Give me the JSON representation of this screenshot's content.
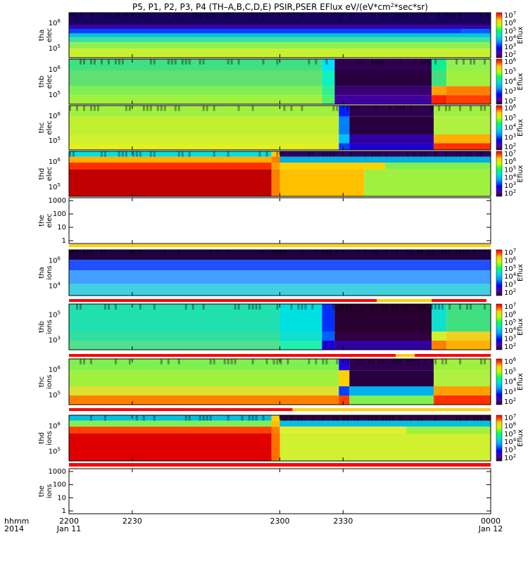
{
  "chart_data": {
    "type": "heatmap",
    "title_prefix": "P5, P1, P2, P3, P4 (TH–A,B,C,D,E) PSIR,PSER EFlux eV/(eV*cm",
    "title_exp": "2",
    "title_suffix": "*sec*sr)",
    "time_axis": {
      "row1_label": "hhmm",
      "row2_label": "2014",
      "ticks": [
        {
          "t": 2200,
          "label": "2200",
          "date": "Jan 11"
        },
        {
          "t": 2230,
          "label": "2230",
          "date": ""
        },
        {
          "t": 2300,
          "label": "2300",
          "date": ""
        },
        {
          "t": 2330,
          "label": "2330",
          "date": ""
        },
        {
          "t": 2400,
          "label": "0000",
          "date": "Jan 12"
        }
      ]
    },
    "colorbar_label": "Eflux",
    "panels": [
      {
        "probe": "tha",
        "species": "elec",
        "kind": "spec",
        "ylog_labels": [
          "10",
          "10"
        ],
        "ylog_exps": [
          "6",
          "5"
        ],
        "cb_labels": [
          [
            "10",
            "7"
          ],
          [
            "10",
            "6"
          ],
          [
            "10",
            "5"
          ],
          [
            "10",
            "4"
          ],
          [
            "10",
            "3"
          ],
          [
            "10",
            "2"
          ]
        ],
        "bands": [
          {
            "segments": [
              [
                "#000030",
                "#3a0a7a",
                0,
                1
              ]
            ],
            "stripe": true
          },
          {
            "segments": [
              [
                "#5000b0",
                "#5000b0",
                0,
                1
              ]
            ]
          },
          {
            "segments": [
              [
                "#0040ff",
                "#0090ff",
                0,
                0.9
              ],
              [
                "#0030ff",
                "#0020ff",
                0.9,
                1
              ]
            ]
          },
          {
            "segments": [
              [
                "#00d0d0",
                "#00c8c0",
                0,
                1
              ]
            ]
          },
          {
            "segments": [
              [
                "#50e090",
                "#60e080",
                0,
                1
              ]
            ]
          },
          {
            "segments": [
              [
                "#a0f040",
                "#a0f040",
                0,
                1
              ]
            ]
          },
          {
            "segments": [
              [
                "#c8f030",
                "#d0f030",
                0,
                1
              ]
            ]
          }
        ]
      },
      {
        "probe": "thb",
        "species": "elec",
        "kind": "spec",
        "ylog_labels": [
          "10",
          "10"
        ],
        "ylog_exps": [
          "6",
          "5"
        ],
        "cb_labels": [
          [
            "10",
            "6"
          ],
          [
            "10",
            "5"
          ],
          [
            "10",
            "4"
          ],
          [
            "10",
            "3"
          ],
          [
            "10",
            "2"
          ]
        ],
        "bands": []
      },
      {
        "probe": "thc",
        "species": "elec",
        "kind": "spec",
        "ylog_labels": [
          "10",
          "10"
        ],
        "ylog_exps": [
          "6",
          "5"
        ],
        "cb_labels": [
          [
            "10",
            "6"
          ],
          [
            "10",
            "5"
          ],
          [
            "10",
            "4"
          ],
          [
            "10",
            "3"
          ],
          [
            "10",
            "2"
          ]
        ],
        "bands": []
      },
      {
        "probe": "thd",
        "species": "elec",
        "kind": "spec",
        "ylog_labels": [
          "10",
          "10"
        ],
        "ylog_exps": [
          "6",
          "5"
        ],
        "cb_labels": [
          [
            "10",
            "7"
          ],
          [
            "10",
            "6"
          ],
          [
            "10",
            "5"
          ],
          [
            "10",
            "4"
          ],
          [
            "10",
            "3"
          ],
          [
            "10",
            "2"
          ]
        ],
        "bands": []
      },
      {
        "probe": "the",
        "species": "elec",
        "kind": "empty",
        "yticks": [
          "1000",
          "100",
          "10",
          "1"
        ]
      },
      {
        "probe": "tha",
        "species": "ions",
        "kind": "spec",
        "ylog_labels": [
          "10",
          "10"
        ],
        "ylog_exps": [
          "6",
          "4"
        ],
        "cb_labels": [
          [
            "10",
            "7"
          ],
          [
            "10",
            "6"
          ],
          [
            "10",
            "5"
          ],
          [
            "10",
            "4"
          ],
          [
            "10",
            "3"
          ],
          [
            "10",
            "2"
          ]
        ],
        "bands": []
      },
      {
        "probe": "thb",
        "species": "ions",
        "kind": "spec",
        "ylog_labels": [
          "10",
          "10"
        ],
        "ylog_exps": [
          "5",
          "3"
        ],
        "cb_labels": [
          [
            "10",
            "7"
          ],
          [
            "10",
            "6"
          ],
          [
            "10",
            "5"
          ],
          [
            "10",
            "4"
          ],
          [
            "10",
            "3"
          ],
          [
            "10",
            "2"
          ]
        ],
        "bands": []
      },
      {
        "probe": "thc",
        "species": "ions",
        "kind": "spec",
        "ylog_labels": [
          "10",
          "10"
        ],
        "ylog_exps": [
          "6",
          "5"
        ],
        "cb_labels": [
          [
            "10",
            "6"
          ],
          [
            "10",
            "5"
          ],
          [
            "10",
            "4"
          ],
          [
            "10",
            "3"
          ],
          [
            "10",
            "2"
          ]
        ],
        "bands": []
      },
      {
        "probe": "thd",
        "species": "ions",
        "kind": "spec",
        "ylog_labels": [
          "10",
          "10"
        ],
        "ylog_exps": [
          "6",
          "5"
        ],
        "cb_labels": [
          [
            "10",
            "7"
          ],
          [
            "10",
            "6"
          ],
          [
            "10",
            "5"
          ],
          [
            "10",
            "4"
          ],
          [
            "10",
            "3"
          ],
          [
            "10",
            "2"
          ]
        ],
        "bands": []
      },
      {
        "probe": "the",
        "species": "ions",
        "kind": "empty",
        "yticks": [
          "1000",
          "100",
          "10",
          "1"
        ]
      }
    ]
  }
}
